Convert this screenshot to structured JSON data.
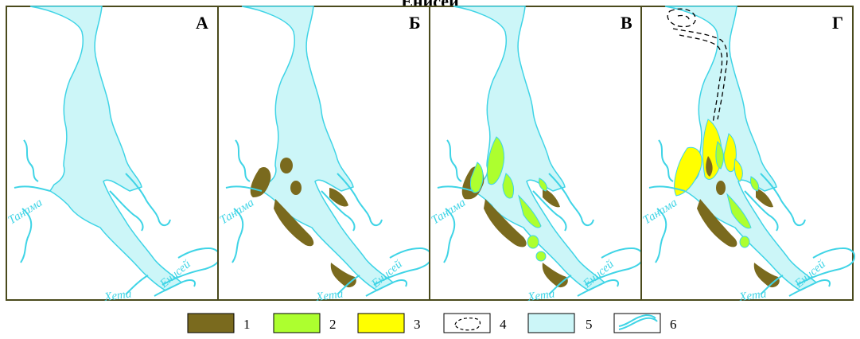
{
  "title": "Енисей",
  "panels": [
    {
      "letter": "А"
    },
    {
      "letter": "Б"
    },
    {
      "letter": "В"
    },
    {
      "letter": "Г"
    }
  ],
  "river_labels": {
    "tanama": "Танама",
    "yenisei": "Енисей",
    "kheta": "Хета"
  },
  "legend": [
    {
      "number": "1",
      "swatch": "dark-olive-fill",
      "color": "#7a6a1e"
    },
    {
      "number": "2",
      "swatch": "light-green-fill",
      "color": "#adff2f"
    },
    {
      "number": "3",
      "swatch": "yellow-fill",
      "color": "#ffff00"
    },
    {
      "number": "4",
      "swatch": "dashed-contour",
      "color": "#000000"
    },
    {
      "number": "5",
      "swatch": "light-blue-water",
      "color": "#ccf6f8"
    },
    {
      "number": "6",
      "swatch": "river-channel-double-line",
      "color": "#3fd4e6"
    }
  ],
  "colors": {
    "water_fill": "#ccf6f8",
    "water_stroke": "#3fd4e6",
    "frame": "#4a4a1c",
    "olive": "#7a6a1e",
    "green": "#adff2f",
    "yellow": "#ffff00"
  }
}
